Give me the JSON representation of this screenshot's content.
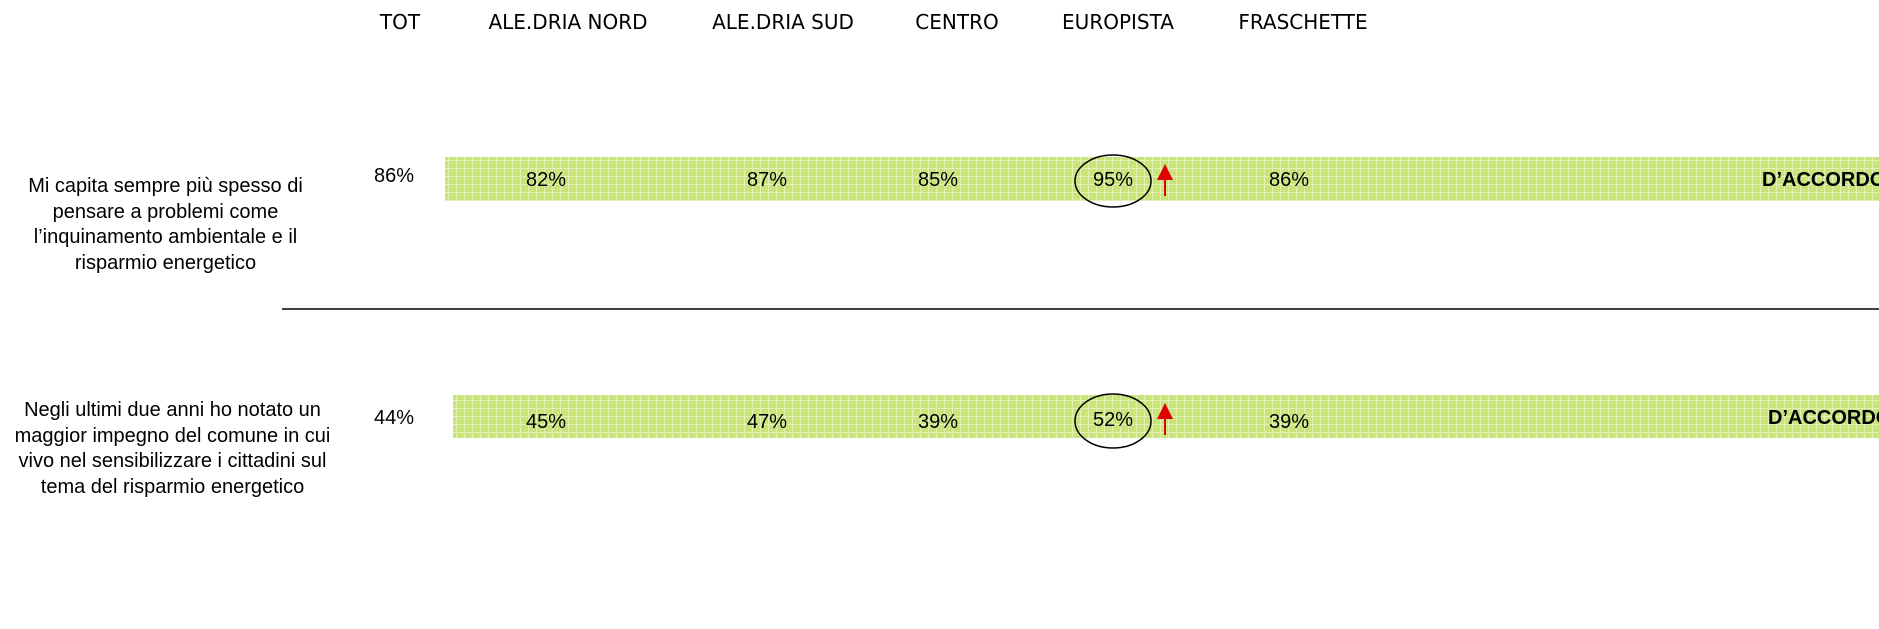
{
  "header": {
    "columns": [
      "TOT",
      "ALE.DRIA NORD",
      "ALE.DRIA SUD",
      "CENTRO",
      "EUROPISTA",
      "FRASCHETTE"
    ]
  },
  "rows": [
    {
      "statement": "Mi capita sempre più spesso di pensare a problemi come l’inquinamento ambientale e il risparmio energetico",
      "total": "86%",
      "values": [
        "82%",
        "87%",
        "85%",
        "95%",
        "86%"
      ],
      "label": "D’ACCORDO"
    },
    {
      "statement": "Negli ultimi due anni ho notato un maggior impegno del comune in cui vivo nel sensibilizzare i cittadini sul tema del risparmio energetico",
      "total": "44%",
      "values": [
        "45%",
        "47%",
        "39%",
        "52%",
        "39%"
      ],
      "label": "D’ACCORDO"
    }
  ]
}
